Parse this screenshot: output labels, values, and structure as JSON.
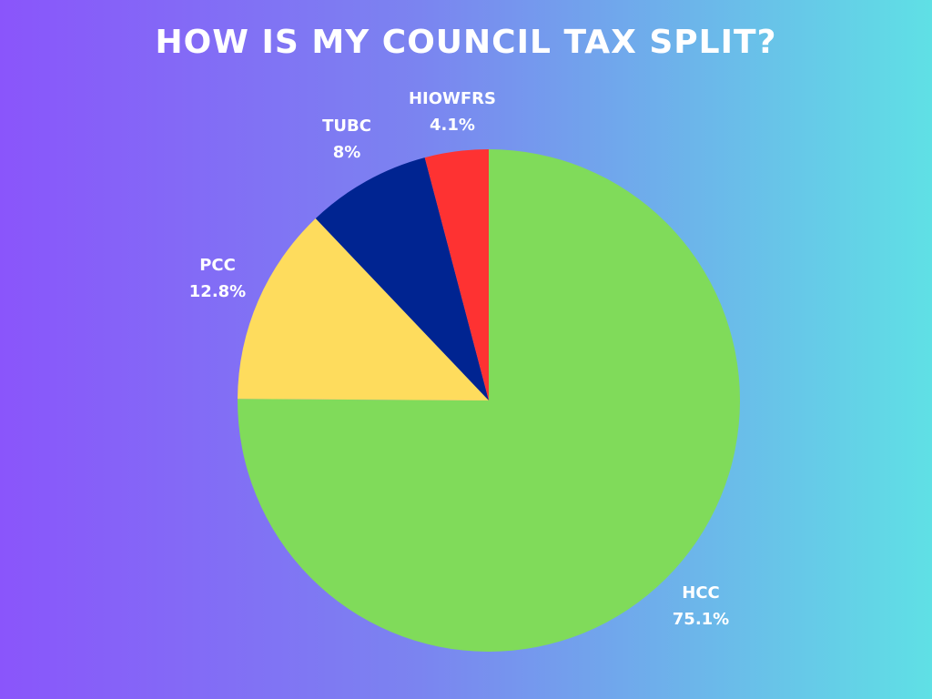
{
  "title": "HOW IS MY COUNCIL TAX SPLIT?",
  "chart_data": {
    "type": "pie",
    "title": "HOW IS MY COUNCIL TAX SPLIT?",
    "slices": [
      {
        "label": "HCC",
        "value": 75.1,
        "value_label": "75.1%",
        "color": "#80db5a"
      },
      {
        "label": "PCC",
        "value": 12.8,
        "value_label": "12.8%",
        "color": "#fedc5d"
      },
      {
        "label": "TUBC",
        "value": 8,
        "value_label": "8%",
        "color": "#002491"
      },
      {
        "label": "HIOWFRS",
        "value": 4.1,
        "value_label": "4.1%",
        "color": "#fe3232"
      }
    ],
    "start_angle": "12 o'clock",
    "direction": "clockwise",
    "legend": "none"
  }
}
